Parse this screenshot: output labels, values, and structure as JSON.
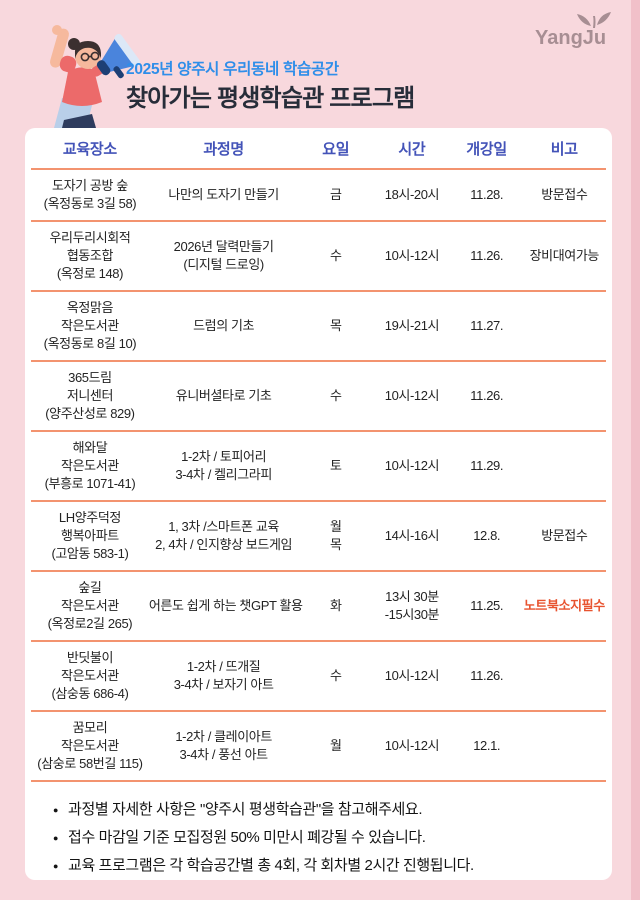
{
  "page": {
    "background": "#f8d8dd",
    "edge_strip": "#f1c0c9",
    "card_background": "#ffffff"
  },
  "logo": {
    "text": "YangJu",
    "color": "#a78e93"
  },
  "header": {
    "subtitle": "2025년 양주시 우리동네 학습공간",
    "title": "찾아가는 평생학습관 프로그램",
    "subtitle_color": "#2f8ee9",
    "title_color": "#272d39"
  },
  "illustration": {
    "name": "person-with-megaphone",
    "coral": "#ec6a6a",
    "skin": "#f6b99d",
    "hair": "#3b3030",
    "megaphone_blue": "#4a84dc",
    "megaphone_dark": "#1d3f75",
    "skirt_blue": "#b9cfe9"
  },
  "table": {
    "columns": [
      "교육장소",
      "과정명",
      "요일",
      "시간",
      "개강일",
      "비고"
    ],
    "header_color": "#4353b8",
    "divider_color": "#f3936f",
    "note_highlight_color": "#e8532f",
    "rows": [
      {
        "place": [
          "도자기 공방 숲",
          "(옥정동로 3길 58)"
        ],
        "course": [
          "나만의 도자기 만들기"
        ],
        "day": [
          "금"
        ],
        "time": [
          "18시-20시"
        ],
        "start": "11.28.",
        "note": "방문접수",
        "note_red": false
      },
      {
        "place": [
          "우리두리시회적",
          "협동조합",
          "(옥정로 148)"
        ],
        "course": [
          "2026년 달력만들기",
          "(디지털 드로잉)"
        ],
        "day": [
          "수"
        ],
        "time": [
          "10시-12시"
        ],
        "start": "11.26.",
        "note": "장비대여가능",
        "note_red": false
      },
      {
        "place": [
          "옥정맑음",
          "작은도서관",
          "(옥정동로 8길 10)"
        ],
        "course": [
          "드럼의 기초"
        ],
        "day": [
          "목"
        ],
        "time": [
          "19시-21시"
        ],
        "start": "11.27.",
        "note": "",
        "note_red": false
      },
      {
        "place": [
          "365드림",
          "저니센터",
          "(양주산성로 829)"
        ],
        "course": [
          "유니버셜타로 기초"
        ],
        "day": [
          "수"
        ],
        "time": [
          "10시-12시"
        ],
        "start": "11.26.",
        "note": "",
        "note_red": false
      },
      {
        "place": [
          "해와달",
          "작은도서관",
          "(부흥로 1071-41)"
        ],
        "course": [
          "1-2차 / 토피어리",
          "3-4차 / 켈리그라피"
        ],
        "day": [
          "토"
        ],
        "time": [
          "10시-12시"
        ],
        "start": "11.29.",
        "note": "",
        "note_red": false
      },
      {
        "place": [
          "LH양주덕정",
          "행복아파트",
          "(고암동 583-1)"
        ],
        "course": [
          "1, 3차 /스마트폰 교육",
          "2, 4차 / 인지향상 보드게임"
        ],
        "day": [
          "월",
          "목"
        ],
        "time": [
          "14시-16시"
        ],
        "start": "12.8.",
        "note": "방문접수",
        "note_red": false
      },
      {
        "place": [
          "숲길",
          "작은도서관",
          "(옥정로2길 265)"
        ],
        "course": [
          "어른도 쉽게 하는 챗GPT 활용"
        ],
        "day": [
          "화"
        ],
        "time": [
          "13시 30분",
          "-15시30분"
        ],
        "start": "11.25.",
        "note": "노트북소지필수",
        "note_red": true
      },
      {
        "place": [
          "반딧불이",
          "작은도서관",
          "(삼숭동 686-4)"
        ],
        "course": [
          "1-2차 / 뜨개질",
          "3-4차 / 보자기 아트"
        ],
        "day": [
          "수"
        ],
        "time": [
          "10시-12시"
        ],
        "start": "11.26.",
        "note": "",
        "note_red": false
      },
      {
        "place": [
          "꿈모리",
          "작은도서관",
          "(삼숭로 58번길 115)"
        ],
        "course": [
          "1-2차 / 클레이아트",
          "3-4차 / 풍선 아트"
        ],
        "day": [
          "월"
        ],
        "time": [
          "10시-12시"
        ],
        "start": "12.1.",
        "note": "",
        "note_red": false
      }
    ]
  },
  "footer": {
    "bullets": [
      "과정별 자세한 사항은 \"양주시 평생학습관\"을 참고해주세요.",
      "접수 마감일 기준 모집정원 50% 미만시 폐강될 수 있습니다.",
      "교육 프로그램은 각 학습공간별 총 4회,  각 회차별 2시간 진행됩니다."
    ]
  }
}
